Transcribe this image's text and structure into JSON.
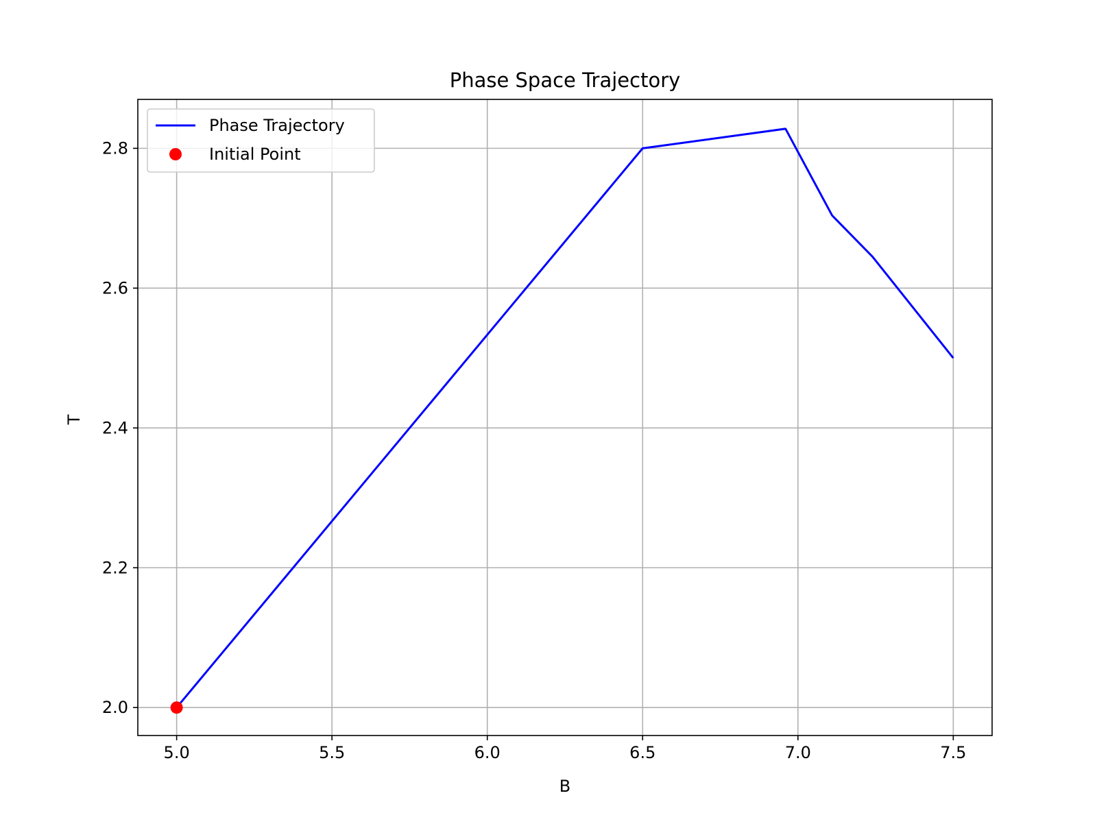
{
  "chart_data": {
    "type": "line",
    "title": "Phase Space Trajectory",
    "xlabel": "B",
    "ylabel": "T",
    "xlim": [
      4.875,
      7.625
    ],
    "ylim": [
      1.96,
      2.87
    ],
    "xticks": [
      5.0,
      5.5,
      6.0,
      6.5,
      7.0,
      7.5
    ],
    "xtick_labels": [
      "5.0",
      "5.5",
      "6.0",
      "6.5",
      "7.0",
      "7.5"
    ],
    "yticks": [
      2.0,
      2.2,
      2.4,
      2.6,
      2.8
    ],
    "ytick_labels": [
      "2.0",
      "2.2",
      "2.4",
      "2.6",
      "2.8"
    ],
    "grid": true,
    "legend_position": "upper-left",
    "series": [
      {
        "name": "Phase Trajectory",
        "kind": "line",
        "color": "#0000ff",
        "x": [
          5.0,
          6.5,
          6.96,
          7.11,
          7.24,
          7.5
        ],
        "y": [
          2.0,
          2.8,
          2.828,
          2.704,
          2.645,
          2.5
        ]
      },
      {
        "name": "Initial Point",
        "kind": "scatter",
        "color": "#ff0000",
        "x": [
          5.0
        ],
        "y": [
          2.0
        ]
      }
    ]
  }
}
